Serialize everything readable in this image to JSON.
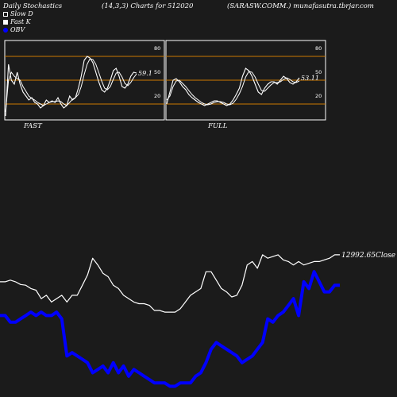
{
  "header": {
    "left": "Daily Stochastics",
    "center": "(14,3,3) Charts for 512020",
    "right": "(SARASW.COMM.) munafasutra.tbrjar.com"
  },
  "legend": [
    {
      "label": "Slow  D",
      "icon": "outline-square",
      "color": "#ffffff"
    },
    {
      "label": "Fast K",
      "icon": "white-square",
      "color": "#ffffff"
    },
    {
      "label": "OBV",
      "icon": "blue-dot",
      "color": "#0000ff"
    }
  ],
  "colors": {
    "background": "#1b1b1b",
    "level_lines": "#cc7a00",
    "obv": "#0000ff",
    "price": "#ffffff"
  },
  "chart_data": [
    {
      "type": "line",
      "name": "stochastic-fast",
      "caption": "FAST",
      "ylim": [
        0,
        100
      ],
      "yticks": [
        80,
        50,
        20
      ],
      "levels": [
        80,
        50,
        20
      ],
      "end_label": "59.1",
      "series": [
        {
          "name": "Fast K",
          "values": [
            5,
            70,
            50,
            45,
            60,
            45,
            35,
            30,
            25,
            28,
            22,
            20,
            15,
            18,
            25,
            22,
            24,
            22,
            28,
            20,
            15,
            18,
            30,
            25,
            28,
            40,
            55,
            75,
            80,
            78,
            72,
            60,
            48,
            38,
            35,
            40,
            50,
            62,
            65,
            55,
            42,
            40,
            45,
            55,
            60,
            59
          ]
        },
        {
          "name": "Slow  D",
          "values": [
            10,
            50,
            60,
            55,
            52,
            50,
            42,
            36,
            30,
            27,
            25,
            22,
            20,
            18,
            20,
            22,
            23,
            23,
            24,
            23,
            20,
            18,
            22,
            26,
            28,
            32,
            42,
            57,
            70,
            77,
            76,
            70,
            60,
            49,
            40,
            38,
            42,
            51,
            59,
            60,
            54,
            46,
            43,
            47,
            53,
            58
          ]
        }
      ]
    },
    {
      "type": "line",
      "name": "stochastic-full",
      "caption": "FULL",
      "ylim": [
        0,
        100
      ],
      "yticks": [
        80,
        50,
        20
      ],
      "levels": [
        80,
        50,
        20
      ],
      "end_label": "53.11",
      "series": [
        {
          "name": "Fast K",
          "values": [
            20,
            35,
            50,
            52,
            48,
            42,
            38,
            32,
            28,
            25,
            22,
            20,
            18,
            20,
            22,
            24,
            24,
            22,
            20,
            18,
            20,
            25,
            32,
            40,
            55,
            65,
            62,
            55,
            45,
            35,
            32,
            40,
            45,
            48,
            48,
            45,
            50,
            55,
            52,
            47,
            45,
            48,
            53
          ]
        },
        {
          "name": "Slow  D",
          "values": [
            25,
            30,
            42,
            49,
            50,
            46,
            42,
            37,
            32,
            28,
            25,
            22,
            20,
            19,
            20,
            22,
            23,
            23,
            22,
            20,
            19,
            21,
            26,
            33,
            42,
            54,
            61,
            60,
            54,
            45,
            37,
            36,
            40,
            44,
            47,
            47,
            48,
            51,
            53,
            51,
            48,
            47,
            49
          ]
        }
      ]
    },
    {
      "type": "line",
      "name": "price-obv",
      "close_label": "12992.65Close",
      "series": [
        {
          "name": "OBV",
          "color": "#0000ff",
          "values": [
            300,
            300,
            320,
            320,
            310,
            300,
            290,
            300,
            290,
            300,
            300,
            290,
            310,
            420,
            410,
            420,
            430,
            440,
            470,
            460,
            450,
            470,
            440,
            470,
            450,
            480,
            460,
            470,
            480,
            490,
            500,
            500,
            500,
            510,
            510,
            500,
            500,
            500,
            480,
            470,
            440,
            400,
            380,
            390,
            400,
            410,
            420,
            440,
            430,
            420,
            400,
            380,
            310,
            320,
            300,
            290,
            270,
            250,
            300,
            200,
            220,
            170,
            200,
            230,
            230,
            210,
            210
          ]
        },
        {
          "name": "Price",
          "color": "#ffffff",
          "values": [
            200,
            200,
            195,
            200,
            208,
            210,
            220,
            225,
            250,
            240,
            260,
            250,
            240,
            260,
            240,
            240,
            210,
            180,
            130,
            150,
            175,
            185,
            210,
            220,
            240,
            250,
            260,
            265,
            265,
            270,
            285,
            285,
            290,
            290,
            290,
            280,
            260,
            240,
            230,
            220,
            170,
            170,
            195,
            220,
            230,
            245,
            240,
            210,
            150,
            140,
            160,
            120,
            130,
            125,
            120,
            135,
            140,
            150,
            140,
            150,
            145,
            140,
            140,
            135,
            130,
            120,
            120
          ]
        }
      ]
    }
  ]
}
